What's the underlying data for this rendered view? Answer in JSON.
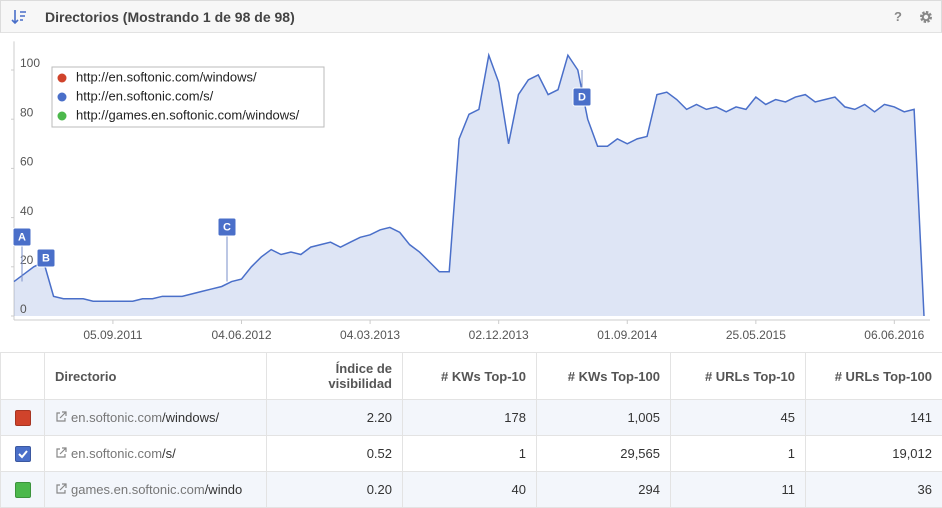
{
  "header": {
    "title": "Directorios (Mostrando 1 de 98 de 98)",
    "help": "?"
  },
  "chart_data": {
    "type": "area",
    "categories": [
      null,
      null,
      null,
      null,
      null,
      null,
      null,
      null,
      null,
      null,
      "05.09.2011",
      null,
      null,
      null,
      null,
      null,
      null,
      null,
      null,
      null,
      null,
      null,
      null,
      "04.06.2012",
      null,
      null,
      null,
      null,
      null,
      null,
      null,
      null,
      null,
      null,
      null,
      null,
      "04.03.2013",
      null,
      null,
      null,
      null,
      null,
      null,
      null,
      null,
      null,
      null,
      null,
      null,
      "02.12.2013",
      null,
      null,
      null,
      null,
      null,
      null,
      null,
      null,
      null,
      null,
      null,
      null,
      "01.09.2014",
      null,
      null,
      null,
      null,
      null,
      null,
      null,
      null,
      null,
      null,
      null,
      null,
      "25.05.2015",
      null,
      null,
      null,
      null,
      null,
      null,
      null,
      null,
      null,
      null,
      null,
      null,
      null,
      "06.06.2016",
      null,
      null,
      null
    ],
    "series": [
      {
        "name": "http://en.softonic.com/windows/",
        "color": "#d0432b"
      },
      {
        "name": "http://en.softonic.com/s/",
        "color": "#4a6fc9",
        "values": [
          14,
          17,
          20,
          22,
          8,
          7,
          7,
          7,
          6,
          6,
          6,
          6,
          6,
          7,
          7,
          8,
          8,
          8,
          9,
          10,
          11,
          12,
          14,
          15,
          20,
          24,
          27,
          25,
          26,
          25,
          28,
          29,
          30,
          28,
          30,
          32,
          33,
          35,
          36,
          34,
          29,
          26,
          22,
          18,
          18,
          72,
          82,
          84,
          106,
          95,
          70,
          90,
          96,
          98,
          90,
          92,
          106,
          100,
          80,
          69,
          69,
          72,
          70,
          72,
          73,
          90,
          91,
          88,
          84,
          86,
          84,
          85,
          83,
          85,
          84,
          89,
          86,
          88,
          87,
          89,
          90,
          87,
          88,
          89,
          85,
          84,
          86,
          83,
          86,
          85,
          83,
          84,
          0
        ]
      },
      {
        "name": "http://games.en.softonic.com/windows/",
        "color": "#4cb84c"
      }
    ],
    "annotations": [
      "A",
      "B",
      "C",
      "D"
    ],
    "ylim": [
      0,
      110
    ],
    "yticks": [
      0,
      20,
      40,
      60,
      80,
      100
    ],
    "grid": false,
    "legend": "top-left"
  },
  "table": {
    "columns": [
      "Directorio",
      "Índice de visibilidad",
      "# KWs Top-10",
      "# KWs Top-100",
      "# URLs Top-10",
      "# URLs Top-100"
    ],
    "rows": [
      {
        "domain": "en.softonic.com",
        "path": "/windows/",
        "cells": [
          "2.20",
          "178",
          "1,005",
          "45",
          "141"
        ],
        "checked": false
      },
      {
        "domain": "en.softonic.com",
        "path": "/s/",
        "cells": [
          "0.52",
          "1",
          "29,565",
          "1",
          "19,012"
        ],
        "checked": true
      },
      {
        "domain": "games.en.softonic.com",
        "path": "/windo",
        "cells": [
          "0.20",
          "40",
          "294",
          "11",
          "36"
        ],
        "checked": false
      }
    ]
  }
}
